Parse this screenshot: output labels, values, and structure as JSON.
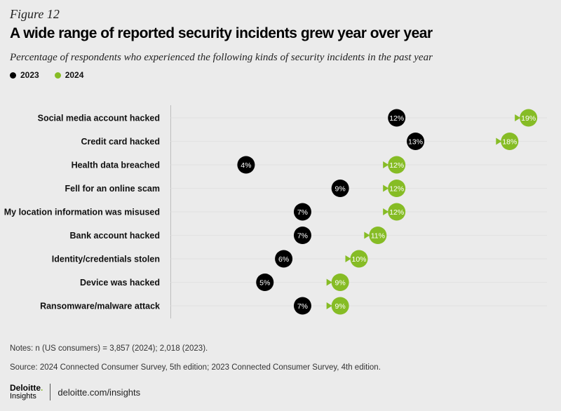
{
  "figure_label": "Figure 12",
  "title": "A wide range of reported security incidents grew year over year",
  "subtitle": "Percentage of respondents who experienced the following kinds of security incidents in the past year",
  "legend": [
    {
      "name": "2023",
      "color": "#000000"
    },
    {
      "name": "2024",
      "color": "#86bc25"
    }
  ],
  "chart_data": {
    "type": "dumbbell",
    "categories": [
      "Social media account hacked",
      "Credit card hacked",
      "Health data breached",
      "Fell for an online scam",
      "My location information was misused",
      "Bank account hacked",
      "Identity/credentials stolen",
      "Device was hacked",
      "Ransomware/malware attack"
    ],
    "series": [
      {
        "name": "2023",
        "color": "#000000",
        "values": [
          12,
          13,
          4,
          9,
          7,
          7,
          6,
          5,
          7
        ]
      },
      {
        "name": "2024",
        "color": "#86bc25",
        "values": [
          19,
          18,
          12,
          12,
          12,
          11,
          10,
          9,
          9
        ]
      }
    ],
    "value_suffix": "%",
    "xlim": [
      0,
      20
    ]
  },
  "notes": "Notes: n (US consumers) = 3,857 (2024); 2,018 (2023).",
  "source": "Source: 2024 Connected Consumer Survey, 5th edition; 2023 Connected Consumer Survey, 4th edition.",
  "brand": {
    "name": "Deloitte",
    "sub": "Insights",
    "url": "deloitte.com/insights"
  }
}
